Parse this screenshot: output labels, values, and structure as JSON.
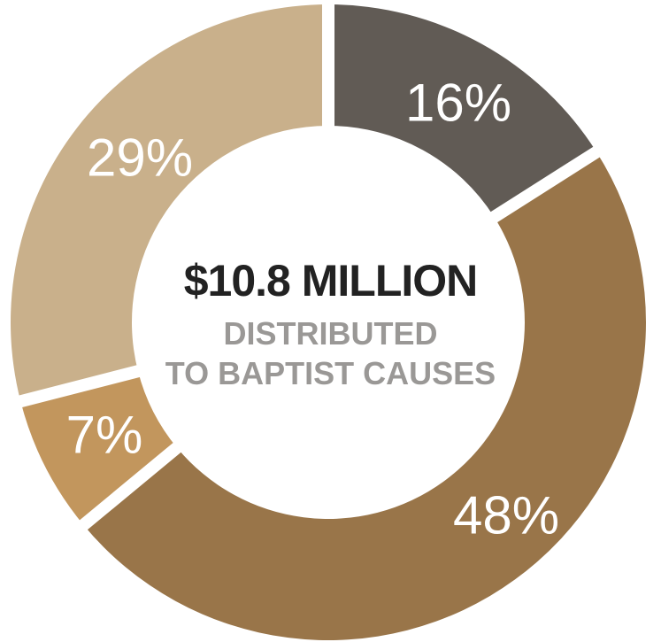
{
  "chart_data": {
    "type": "pie",
    "donut": true,
    "slices": [
      {
        "label": "16%",
        "value": 16,
        "color": "#615b55"
      },
      {
        "label": "48%",
        "value": 48,
        "color": "#997549"
      },
      {
        "label": "7%",
        "value": 7,
        "color": "#c2965d"
      },
      {
        "label": "29%",
        "value": 29,
        "color": "#c9b08b"
      }
    ],
    "center": {
      "amount": "$10.8 MILLION",
      "line1": "DISTRIBUTED",
      "line2": "TO BAPTIST CAUSES"
    }
  }
}
